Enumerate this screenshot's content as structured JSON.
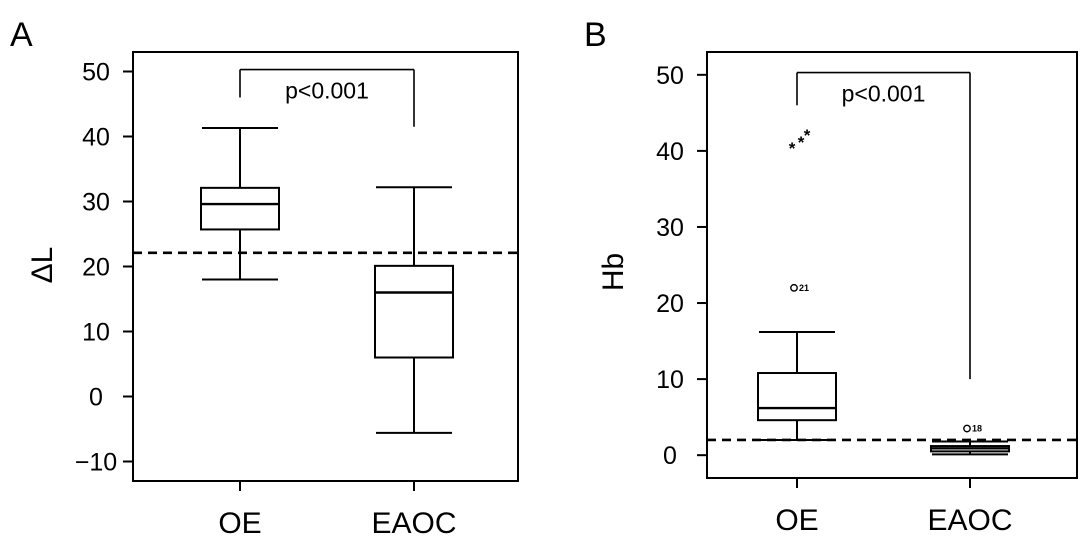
{
  "chart_data": [
    {
      "panel": "A",
      "type": "box",
      "ylabel": "ΔL",
      "categories": [
        "OE",
        "EAOC"
      ],
      "ylim": [
        -13,
        53
      ],
      "yticks": [
        -10,
        0,
        10,
        20,
        30,
        40,
        50
      ],
      "ytick_labels": [
        "−10",
        "0",
        "10",
        "20",
        "30",
        "40",
        "50"
      ],
      "boxes": [
        {
          "category": "OE",
          "whisker_low": 18,
          "q1": 25.7,
          "median": 29.6,
          "q3": 32.1,
          "whisker_high": 41.3,
          "outliers": []
        },
        {
          "category": "EAOC",
          "whisker_low": -5.6,
          "q1": 6,
          "median": 16,
          "q3": 20.1,
          "whisker_high": 32.2,
          "outliers": []
        }
      ],
      "cutoff": 22.1,
      "significance": {
        "text": "p<0.001",
        "y_bar": 50.3,
        "y_left": 46,
        "y_right": 41.5
      }
    },
    {
      "panel": "B",
      "type": "box",
      "ylabel": "Hb",
      "categories": [
        "OE",
        "EAOC"
      ],
      "ylim": [
        -3,
        53
      ],
      "yticks": [
        0,
        10,
        20,
        30,
        40,
        50
      ],
      "ytick_labels": [
        "0",
        "10",
        "20",
        "30",
        "40",
        "50"
      ],
      "boxes": [
        {
          "category": "OE",
          "whisker_low": 2,
          "q1": 4.6,
          "median": 6.2,
          "q3": 10.8,
          "whisker_high": 16.2,
          "outliers": [
            {
              "value": 22,
              "marker": "o",
              "label": "21"
            },
            {
              "value": 40.5,
              "marker": "*",
              "label": "",
              "dx": -5
            },
            {
              "value": 41.3,
              "marker": "*",
              "label": "",
              "dx": 4
            },
            {
              "value": 42.2,
              "marker": "*",
              "label": "",
              "dx": 10
            }
          ]
        },
        {
          "category": "EAOC",
          "whisker_low": 0.1,
          "q1": 0.5,
          "median": 0.9,
          "q3": 1.2,
          "whisker_high": 1.8,
          "outliers": [
            {
              "value": 3.5,
              "marker": "o",
              "label": "18"
            }
          ]
        }
      ],
      "cutoff": 2,
      "significance": {
        "text": "p<0.001",
        "y_bar": 50.3,
        "y_left": 46,
        "y_right": 10
      }
    }
  ]
}
